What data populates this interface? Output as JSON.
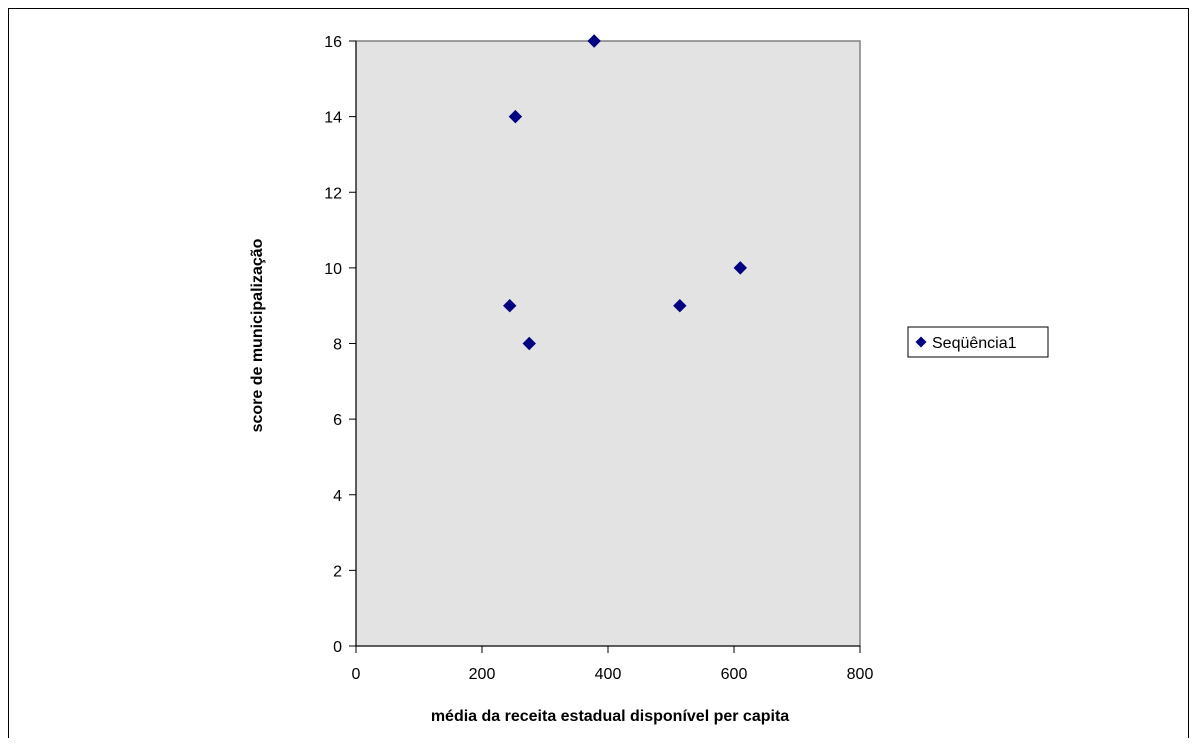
{
  "chart_data": {
    "type": "scatter",
    "title": "",
    "xlabel": "média da receita estadual disponível per capita",
    "ylabel": "score de municipalização",
    "xlim": [
      0,
      800
    ],
    "ylim": [
      0,
      16
    ],
    "x_ticks": [
      0,
      200,
      400,
      600,
      800
    ],
    "y_ticks": [
      0,
      2,
      4,
      6,
      8,
      10,
      12,
      14,
      16
    ],
    "grid": false,
    "legend_position": "right",
    "series": [
      {
        "name": "Seqüência1",
        "color": "#000080",
        "marker": "diamond",
        "points": [
          {
            "x": 378,
            "y": 16
          },
          {
            "x": 253,
            "y": 14
          },
          {
            "x": 610,
            "y": 10
          },
          {
            "x": 244,
            "y": 9
          },
          {
            "x": 514,
            "y": 9
          },
          {
            "x": 275,
            "y": 8
          }
        ]
      }
    ],
    "plot_background": "#e3e3e3",
    "plot_border": "#808080"
  }
}
